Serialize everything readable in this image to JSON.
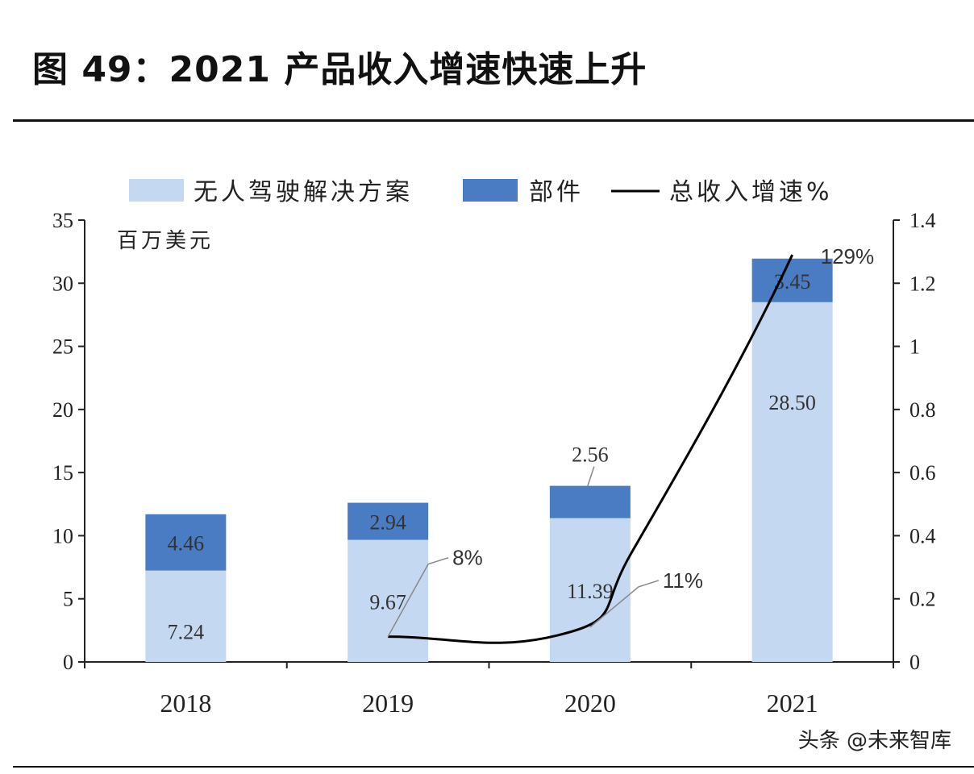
{
  "title": "图 49：2021 产品收入增速快速上升",
  "watermark": "头条 @未来智库",
  "chart_data": {
    "type": "bar",
    "stacked": true,
    "title": "图 49：2021 产品收入增速快速上升",
    "unit_label": "百万美元",
    "categories": [
      "2018",
      "2019",
      "2020",
      "2021"
    ],
    "series": [
      {
        "name": "无人驾驶解决方案",
        "values": [
          7.24,
          9.67,
          11.39,
          28.5
        ],
        "labels": [
          "7.24",
          "9.67",
          "11.39",
          "28.50"
        ],
        "color": "#c5d8f2"
      },
      {
        "name": "部件",
        "values": [
          4.46,
          2.94,
          2.56,
          3.45
        ],
        "labels": [
          "4.46",
          "2.94",
          "2.56",
          "3.45"
        ],
        "color": "#4a7cc4"
      }
    ],
    "line_series": {
      "name": "总收入增速%",
      "categories": [
        "2019",
        "2020",
        "2021"
      ],
      "values": [
        0.08,
        0.11,
        1.29
      ],
      "labels": [
        "8%",
        "11%",
        "129%"
      ],
      "color": "#000000",
      "axis": "right"
    },
    "ylim": [
      0,
      35
    ],
    "yticks": [
      "0",
      "5",
      "10",
      "15",
      "20",
      "25",
      "30",
      "35"
    ],
    "y2lim": [
      0,
      1.4
    ],
    "y2ticks": [
      "0",
      "0.2",
      "0.4",
      "0.6",
      "0.8",
      "1",
      "1.2",
      "1.4"
    ],
    "legend_placement": "top",
    "grid": false
  }
}
